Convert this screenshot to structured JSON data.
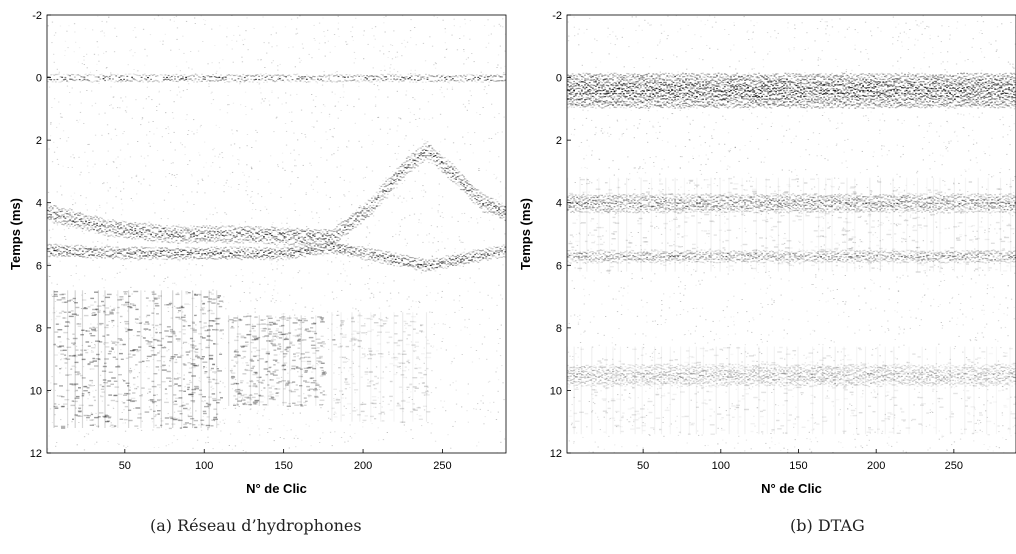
{
  "figure": {
    "captions": [
      "(a) Réseau d’hydrophones",
      "(b) DTAG"
    ]
  },
  "chart_data": [
    {
      "type": "heatmap",
      "title": "",
      "caption": "(a) Réseau d’hydrophones",
      "xlabel": "N° de Clic",
      "ylabel": "Temps (ms)",
      "xlim": [
        1,
        290
      ],
      "ylim": [
        12,
        -2
      ],
      "y_axis_inverted": true,
      "xticks": [
        50,
        100,
        150,
        200,
        250
      ],
      "yticks": [
        -2,
        0,
        2,
        4,
        6,
        8,
        10,
        12
      ],
      "colormap": "grayscale (white = low, black = high amplitude)",
      "grid": false,
      "reflectors": [
        {
          "name": "direct path",
          "points": [
            [
              1,
              0.0
            ],
            [
              290,
              0.0
            ]
          ],
          "strength": 1.0,
          "width_ms": 0.15
        },
        {
          "name": "surface reflection",
          "points": [
            [
              1,
              4.3
            ],
            [
              40,
              4.8
            ],
            [
              80,
              5.0
            ],
            [
              130,
              5.0
            ],
            [
              180,
              5.1
            ],
            [
              205,
              4.1
            ],
            [
              225,
              2.9
            ],
            [
              240,
              2.3
            ],
            [
              255,
              3.0
            ],
            [
              275,
              4.0
            ],
            [
              290,
              4.3
            ]
          ],
          "strength": 0.8,
          "width_ms": 0.45
        },
        {
          "name": "bottom reflection",
          "points": [
            [
              1,
              5.5
            ],
            [
              50,
              5.6
            ],
            [
              100,
              5.6
            ],
            [
              150,
              5.6
            ],
            [
              180,
              5.4
            ],
            [
              240,
              6.0
            ],
            [
              290,
              5.5
            ]
          ],
          "strength": 0.85,
          "width_ms": 0.3
        }
      ],
      "scatter_zones": [
        {
          "x": [
            5,
            110
          ],
          "y": [
            6.8,
            11.2
          ],
          "strength": 0.55
        },
        {
          "x": [
            115,
            175
          ],
          "y": [
            7.6,
            10.5
          ],
          "strength": 0.45
        },
        {
          "x": [
            180,
            240
          ],
          "y": [
            7.5,
            11.0
          ],
          "strength": 0.25
        }
      ]
    },
    {
      "type": "heatmap",
      "title": "",
      "caption": "(b) DTAG",
      "xlabel": "N° de Clic",
      "ylabel": "Temps (ms)",
      "xlim": [
        1,
        290
      ],
      "ylim": [
        12,
        -2
      ],
      "y_axis_inverted": true,
      "xticks": [
        50,
        100,
        150,
        200,
        250
      ],
      "yticks": [
        -2,
        0,
        2,
        4,
        6,
        8,
        10,
        12
      ],
      "colormap": "grayscale (white = low, black = high amplitude)",
      "grid": false,
      "reflectors": [
        {
          "name": "direct path",
          "points": [
            [
              1,
              0.4
            ],
            [
              290,
              0.4
            ]
          ],
          "strength": 0.9,
          "width_ms": 1.0
        },
        {
          "name": "surface reflection",
          "points": [
            [
              1,
              4.0
            ],
            [
              290,
              4.0
            ]
          ],
          "strength": 0.6,
          "width_ms": 0.5
        },
        {
          "name": "bottom reflection",
          "points": [
            [
              1,
              5.7
            ],
            [
              290,
              5.7
            ]
          ],
          "strength": 0.55,
          "width_ms": 0.3
        },
        {
          "name": "late arrival",
          "points": [
            [
              1,
              9.5
            ],
            [
              290,
              9.5
            ]
          ],
          "strength": 0.35,
          "width_ms": 0.6
        }
      ],
      "scatter_zones": [
        {
          "x": [
            1,
            290
          ],
          "y": [
            3.2,
            6.2
          ],
          "strength": 0.2
        },
        {
          "x": [
            1,
            290
          ],
          "y": [
            8.6,
            11.4
          ],
          "strength": 0.18
        }
      ]
    }
  ]
}
